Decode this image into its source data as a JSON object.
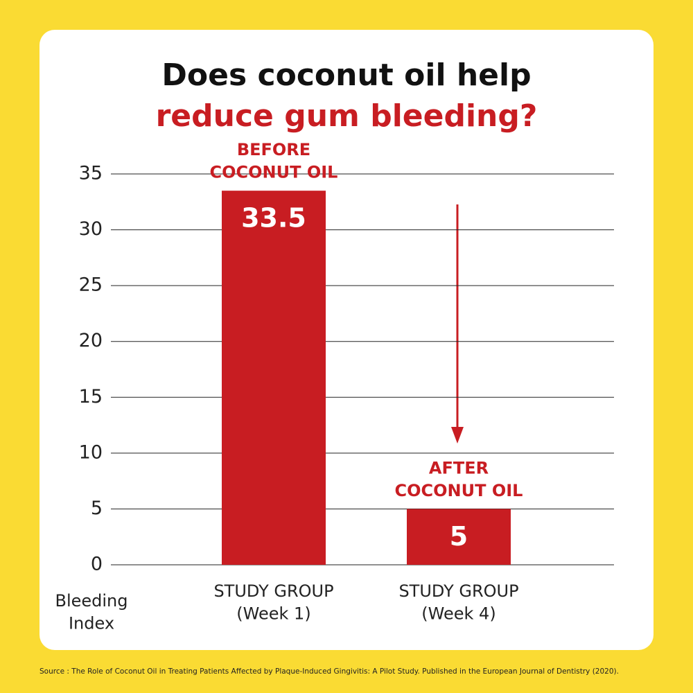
{
  "chart_data": {
    "type": "bar",
    "title": "Does coconut oil help",
    "subtitle": "reduce gum bleeding?",
    "y_label": "Bleeding\nIndex",
    "categories": [
      "STUDY GROUP\n(Week 1)",
      "STUDY GROUP\n(Week 4)"
    ],
    "values": [
      33.5,
      5
    ],
    "annotations": [
      "BEFORE\nCOCONUT OIL",
      "AFTER\nCOCONUT OIL"
    ],
    "color": "#c81d22",
    "ylim": [
      0,
      35
    ],
    "yticks": [
      0,
      5,
      10,
      15,
      20,
      25,
      30,
      35
    ],
    "grid": true,
    "source": "Source : The Role of Coconut Oil in Treating Patients Affected by Plaque-Induced Gingivitis: A Pilot Study. Published in the European Journal of Dentistry (2020)."
  }
}
